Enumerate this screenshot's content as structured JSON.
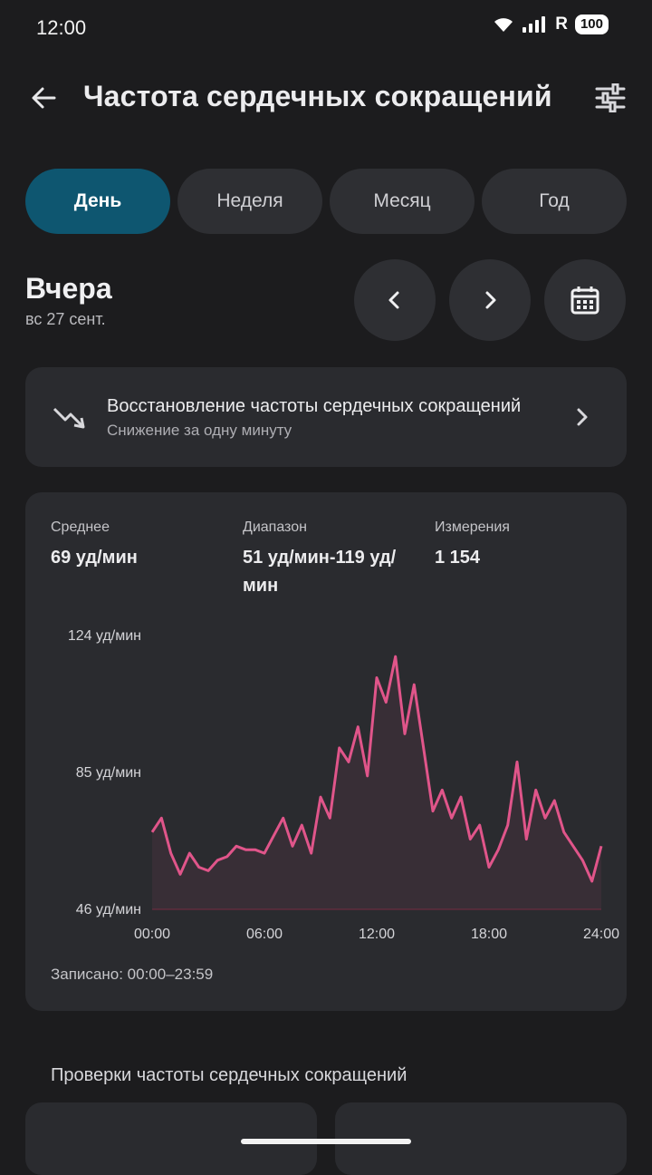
{
  "status_bar": {
    "time": "12:00",
    "battery": "100",
    "signal_tag": "R"
  },
  "header": {
    "title": "Частота сердечных сокращений"
  },
  "tabs": [
    {
      "label": "День",
      "active": true
    },
    {
      "label": "Неделя",
      "active": false
    },
    {
      "label": "Месяц",
      "active": false
    },
    {
      "label": "Год",
      "active": false
    }
  ],
  "date": {
    "title": "Вчера",
    "subtitle": "вс 27 сент."
  },
  "recovery": {
    "title": "Восстановление частоты сердечных сокращений",
    "subtitle": "Снижение за одну минуту"
  },
  "stats": {
    "avg_label": "Среднее",
    "avg_value": "69 уд/мин",
    "range_label": "Диапазон",
    "range_value_line1": "51 уд/мин-119 уд/",
    "range_value_line2": "мин",
    "count_label": "Измерения",
    "count_value": "1 154",
    "recorded": "Записано: 00:00–23:59"
  },
  "chart_data": {
    "type": "line",
    "x_unit": "hours",
    "xlim": [
      0,
      24
    ],
    "ylim": [
      46,
      124
    ],
    "y_ticks": [
      "124 уд/мин",
      "85 уд/мин",
      "46 уд/мин"
    ],
    "x_ticks": [
      "00:00",
      "06:00",
      "12:00",
      "18:00",
      "24:00"
    ],
    "series_color": "#e0558a",
    "x": [
      0,
      0.5,
      1,
      1.5,
      2,
      2.5,
      3,
      3.5,
      4,
      4.5,
      5,
      5.5,
      6,
      6.5,
      7,
      7.5,
      8,
      8.5,
      9,
      9.5,
      10,
      10.5,
      11,
      11.5,
      12,
      12.5,
      13,
      13.5,
      14,
      14.5,
      15,
      15.5,
      16,
      16.5,
      17,
      17.5,
      18,
      18.5,
      19,
      19.5,
      20,
      20.5,
      21,
      21.5,
      22,
      22.5,
      23,
      23.5,
      24
    ],
    "values": [
      68,
      72,
      62,
      56,
      62,
      58,
      57,
      60,
      61,
      64,
      63,
      63,
      62,
      67,
      72,
      64,
      70,
      62,
      78,
      72,
      92,
      88,
      98,
      84,
      112,
      105,
      118,
      96,
      110,
      92,
      74,
      80,
      72,
      78,
      66,
      70,
      58,
      63,
      70,
      88,
      66,
      80,
      72,
      77,
      68,
      64,
      60,
      54,
      64
    ]
  },
  "section": {
    "title": "Проверки частоты сердечных сокращений"
  },
  "colors": {
    "accent_tab": "#0e5670",
    "card": "#2a2b2f",
    "line": "#e0558a"
  }
}
